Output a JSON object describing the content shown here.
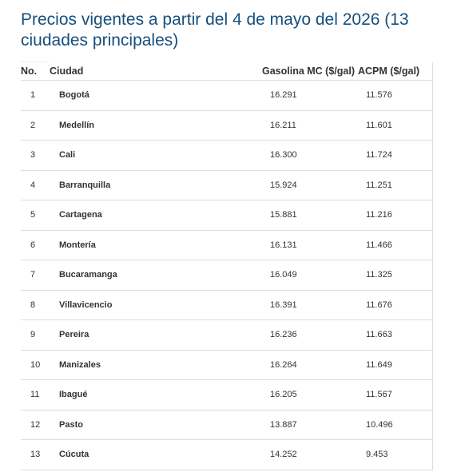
{
  "title": "Precios vigentes a partir del 4 de mayo del 2026 (13 ciudades principales)",
  "table": {
    "header": [
      "No.",
      "Ciudad",
      "Gasolina MC ($/gal)",
      "ACPM ($/gal)"
    ],
    "rows": [
      [
        "1",
        "Bogotá",
        "16.291",
        "11.576"
      ],
      [
        "2",
        "Medellín",
        "16.211",
        "11.601"
      ],
      [
        "3",
        "Cali",
        "16.300",
        "11.724"
      ],
      [
        "4",
        "Barranquilla",
        "15.924",
        "11.251"
      ],
      [
        "5",
        "Cartagena",
        "15.881",
        "11.216"
      ],
      [
        "6",
        "Montería",
        "16.131",
        "11.466"
      ],
      [
        "7",
        "Bucaramanga",
        "16.049",
        "11.325"
      ],
      [
        "8",
        "Villavicencio",
        "16.391",
        "11.676"
      ],
      [
        "9",
        "Pereira",
        "16.236",
        "11.663"
      ],
      [
        "10",
        "Manizales",
        "16.264",
        "11.649"
      ],
      [
        "11",
        "Ibagué",
        "16.205",
        "11.567"
      ],
      [
        "12",
        "Pasto",
        "13.887",
        "10.496"
      ],
      [
        "13",
        "Cúcuta",
        "14.252",
        "9.453"
      ]
    ]
  }
}
